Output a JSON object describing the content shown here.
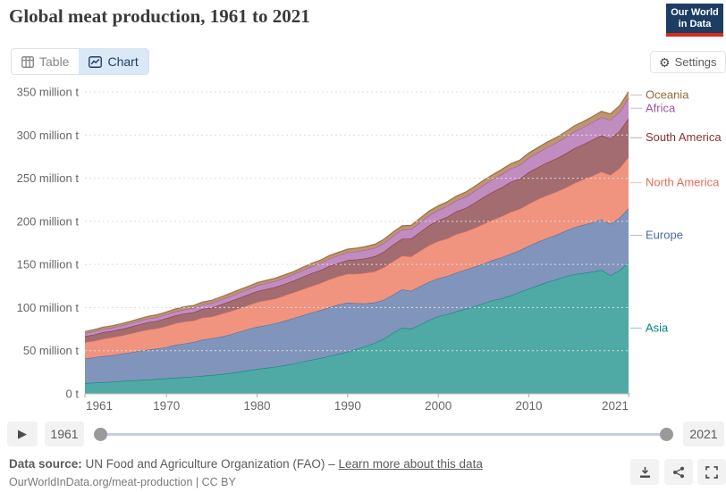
{
  "header": {
    "title": "Global meat production, 1961 to 2021",
    "logo": {
      "line1": "Our World",
      "line2": "in Data",
      "bg_color": "#1d3d63",
      "accent_color": "#dc2a1a"
    }
  },
  "toolbar": {
    "tabs": [
      {
        "label": "Table"
      },
      {
        "label": "Chart"
      }
    ],
    "active_tab": "Chart",
    "settings_label": "Settings"
  },
  "chart_data": {
    "type": "area",
    "stacked": true,
    "title": "Global meat production, 1961 to 2021",
    "unit": "million t",
    "ylim": [
      0,
      350
    ],
    "grid": "dashed",
    "legend_position": "right",
    "x": [
      1961,
      1962,
      1963,
      1964,
      1965,
      1966,
      1967,
      1968,
      1969,
      1970,
      1971,
      1972,
      1973,
      1974,
      1975,
      1976,
      1977,
      1978,
      1979,
      1980,
      1981,
      1982,
      1983,
      1984,
      1985,
      1986,
      1987,
      1988,
      1989,
      1990,
      1991,
      1992,
      1993,
      1994,
      1995,
      1996,
      1997,
      1998,
      1999,
      2000,
      2001,
      2002,
      2003,
      2004,
      2005,
      2006,
      2007,
      2008,
      2009,
      2010,
      2011,
      2012,
      2013,
      2014,
      2015,
      2016,
      2017,
      2018,
      2019,
      2020,
      2021
    ],
    "x_ticks": [
      1961,
      1970,
      1980,
      1990,
      2000,
      2010,
      2021
    ],
    "y_ticks": [
      {
        "v": 0,
        "label": "0 t"
      },
      {
        "v": 50,
        "label": "50 million t"
      },
      {
        "v": 100,
        "label": "100 million t"
      },
      {
        "v": 150,
        "label": "150 million t"
      },
      {
        "v": 200,
        "label": "200 million t"
      },
      {
        "v": 250,
        "label": "250 million t"
      },
      {
        "v": 300,
        "label": "300 million t"
      },
      {
        "v": 350,
        "label": "350 million t"
      }
    ],
    "series": [
      {
        "name": "Asia",
        "color": "#00847E",
        "fill": "#4FA9A4",
        "values": [
          12.4,
          12.9,
          13.5,
          14,
          14.7,
          15.3,
          15.9,
          16.5,
          17.1,
          17.8,
          18.6,
          19.3,
          20,
          20.8,
          21.7,
          22.7,
          23.9,
          25.4,
          27,
          28.7,
          30,
          31.4,
          33,
          35,
          37.2,
          39.3,
          41.4,
          43.9,
          46.3,
          48.9,
          52,
          55.3,
          59,
          64,
          70.5,
          76.5,
          75.5,
          80,
          85.5,
          90,
          92.5,
          95.5,
          98.5,
          101.5,
          105,
          108.5,
          110.5,
          114,
          118,
          122,
          125.5,
          129.5,
          132.5,
          136,
          138.5,
          140,
          141.5,
          143.5,
          137.5,
          143,
          152.5
        ]
      },
      {
        "name": "Europe",
        "color": "#4C6A9C",
        "fill": "#8194BC",
        "values": [
          28.5,
          29.2,
          30.2,
          30.6,
          31.6,
          32.6,
          33.8,
          34.8,
          35.3,
          36.4,
          38,
          39,
          40,
          42,
          42.8,
          43.5,
          44.8,
          46.5,
          48,
          49,
          49.5,
          50.3,
          51.5,
          52.8,
          53.5,
          54.8,
          55.5,
          56.5,
          57.3,
          56.8,
          53,
          49.5,
          47,
          45,
          44.3,
          44.5,
          43.8,
          44.8,
          44.5,
          43.9,
          44.1,
          45.1,
          45.3,
          45.7,
          46.1,
          46.4,
          47.8,
          48.3,
          48.4,
          49.5,
          50.7,
          51,
          51.5,
          52.9,
          54.5,
          55.8,
          57.2,
          58.7,
          59.5,
          61,
          62.5
        ]
      },
      {
        "name": "North America",
        "color": "#E56E5A",
        "fill": "#F0947F",
        "values": [
          18.7,
          19.2,
          20,
          20.8,
          21,
          21.8,
          22.6,
          23.2,
          23.5,
          24.3,
          25.2,
          25.5,
          24.9,
          25.6,
          24.9,
          26.4,
          26.8,
          27,
          27.6,
          28.5,
          28.9,
          28.6,
          29.3,
          29.6,
          30.4,
          30.7,
          31.4,
          32.4,
          32.7,
          33.3,
          34.2,
          35.4,
          36,
          37.6,
          38.7,
          39,
          39.8,
          41,
          42.3,
          43.1,
          43.5,
          44.4,
          44.3,
          45,
          45.9,
          46.8,
          47.6,
          48.5,
          47.9,
          48.9,
          49.4,
          49.7,
          50,
          49.8,
          51.2,
          52.7,
          54,
          55.3,
          56.6,
          57.6,
          59.5
        ]
      },
      {
        "name": "South America",
        "color": "#883039",
        "fill": "#A26C70",
        "values": [
          7.2,
          7.4,
          7.7,
          7.5,
          7.8,
          8,
          8.3,
          8.6,
          8.8,
          9.1,
          9,
          9.3,
          9.6,
          10.1,
          10.5,
          11,
          11.7,
          12.2,
          12.4,
          12.8,
          13.1,
          13.4,
          13.5,
          13.7,
          14.4,
          15,
          15.1,
          15.5,
          15.4,
          15.9,
          16.5,
          17,
          17.5,
          18.2,
          19.3,
          19.8,
          20.8,
          21.9,
          23.1,
          24.1,
          25.2,
          26.5,
          27.3,
          29.2,
          31,
          32.4,
          33.6,
          35,
          34.8,
          36.6,
          37.2,
          38,
          38.8,
          39.5,
          40.5,
          40.8,
          41.8,
          42.3,
          42.5,
          43.2,
          45
        ]
      },
      {
        "name": "Africa",
        "color": "#A2559C",
        "fill": "#C18DC1",
        "values": [
          3.4,
          3.5,
          3.6,
          3.7,
          3.8,
          3.9,
          4,
          4.2,
          4.3,
          4.5,
          4.6,
          4.8,
          4.9,
          5.1,
          5.3,
          5.5,
          5.7,
          5.9,
          6.1,
          6.4,
          6.7,
          6.9,
          7.1,
          7.2,
          7.6,
          7.9,
          8.1,
          8.5,
          8.7,
          9,
          9.3,
          9.5,
          9.7,
          10,
          10.3,
          10.6,
          10.8,
          11.2,
          11.6,
          11.9,
          12.2,
          12.6,
          13.1,
          13.6,
          14.1,
          14.5,
          14.9,
          15.5,
          16.1,
          16.6,
          17,
          17.6,
          18.2,
          18.8,
          19.3,
          19.8,
          20.3,
          21,
          21.6,
          22.3,
          23.5
        ]
      },
      {
        "name": "Oceania",
        "color": "#97683A",
        "fill": "#BD9572",
        "values": [
          2,
          2.1,
          2.2,
          2.3,
          2.3,
          2.4,
          2.5,
          2.6,
          2.8,
          2.9,
          3,
          3.1,
          3,
          2.9,
          3.2,
          3.3,
          3.4,
          3.5,
          3.4,
          3.4,
          3.3,
          3.4,
          3.3,
          3.3,
          3.4,
          3.5,
          3.5,
          3.6,
          3.7,
          3.9,
          4,
          4.1,
          4.2,
          4.3,
          4.3,
          4.4,
          4.6,
          4.8,
          5,
          5.1,
          5.2,
          5.3,
          5.3,
          5.3,
          5.5,
          5.5,
          5.7,
          5.6,
          5.7,
          5.7,
          5.8,
          6,
          6.2,
          6.4,
          6.6,
          6.5,
          6.6,
          6.7,
          6.9,
          7,
          7.2
        ]
      }
    ]
  },
  "timeline": {
    "start_year": "1961",
    "end_year": "2021"
  },
  "footer": {
    "datasource_label": "Data source:",
    "datasource": "UN Food and Agriculture Organization (FAO)",
    "dash": "–",
    "link_label": "Learn more about this data",
    "citation": "OurWorldInData.org/meat-production | CC BY"
  }
}
